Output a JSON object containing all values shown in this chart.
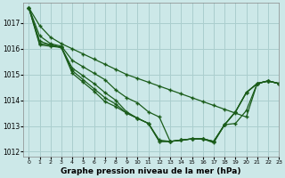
{
  "title": "Graphe pression niveau de la mer (hPa)",
  "bg_color": "#cce8e8",
  "grid_color": "#aacece",
  "line_color": "#1a5c1a",
  "marker_color": "#1a5c1a",
  "xlim": [
    -0.5,
    23
  ],
  "ylim": [
    1011.8,
    1017.8
  ],
  "xticks": [
    0,
    1,
    2,
    3,
    4,
    5,
    6,
    7,
    8,
    9,
    10,
    11,
    12,
    13,
    14,
    15,
    16,
    17,
    18,
    19,
    20,
    21,
    22,
    23
  ],
  "yticks": [
    1012,
    1013,
    1014,
    1015,
    1016,
    1017
  ],
  "series": [
    [
      1017.6,
      1016.9,
      1016.45,
      1016.2,
      1016.0,
      1015.8,
      1015.6,
      1015.4,
      1015.2,
      1015.0,
      1014.85,
      1014.7,
      1014.55,
      1014.4,
      1014.25,
      1014.1,
      1013.95,
      1013.8,
      1013.65,
      1013.5,
      1013.35,
      1014.65,
      1014.75,
      1014.65
    ],
    [
      1017.6,
      1016.5,
      1016.2,
      1016.1,
      1015.55,
      1015.3,
      1015.05,
      1014.8,
      1014.4,
      1014.1,
      1013.9,
      1013.55,
      1013.35,
      1012.4,
      1012.45,
      1012.5,
      1012.5,
      1012.4,
      1013.05,
      1013.55,
      1014.3,
      1014.65,
      1014.75,
      1014.65
    ],
    [
      1017.6,
      1016.3,
      1016.15,
      1016.05,
      1015.25,
      1014.95,
      1014.65,
      1014.3,
      1014.0,
      1013.55,
      1013.3,
      1013.1,
      1012.45,
      1012.4,
      1012.45,
      1012.5,
      1012.5,
      1012.4,
      1013.05,
      1013.55,
      1014.3,
      1014.65,
      1014.75,
      1014.65
    ],
    [
      1017.6,
      1016.2,
      1016.15,
      1016.05,
      1015.15,
      1014.8,
      1014.45,
      1014.1,
      1013.85,
      1013.5,
      1013.3,
      1013.1,
      1012.4,
      1012.4,
      1012.45,
      1012.5,
      1012.5,
      1012.4,
      1013.05,
      1013.55,
      1014.3,
      1014.65,
      1014.75,
      1014.65
    ],
    [
      1017.6,
      1016.15,
      1016.1,
      1016.05,
      1015.05,
      1014.7,
      1014.35,
      1013.95,
      1013.75,
      1013.5,
      1013.3,
      1013.1,
      1012.4,
      1012.4,
      1012.45,
      1012.5,
      1012.5,
      1012.35,
      1013.05,
      1013.1,
      1013.6,
      1014.65,
      1014.75,
      1014.65
    ]
  ]
}
